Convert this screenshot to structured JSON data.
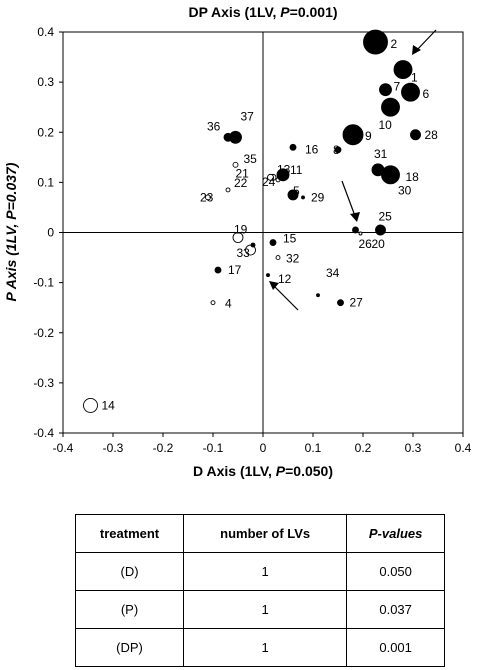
{
  "chart_data": {
    "type": "scatter",
    "title": "DP Axis (1LV, P=0.001)",
    "xlabel": "D Axis (1LV, P=0.050)",
    "ylabel": "P Axis (1LV, P=0.037)",
    "xlim": [
      -0.4,
      0.4
    ],
    "ylim": [
      -0.4,
      0.4
    ],
    "xticks": [
      "-0.4",
      "-0.3",
      "-0.2",
      "-0.1",
      "0",
      "0.1",
      "0.2",
      "0.3",
      "0.4"
    ],
    "yticks": [
      "0.4",
      "0.3",
      "0.2",
      "0.1",
      "0",
      "-0.1",
      "-0.2",
      "-0.3",
      "-0.4"
    ],
    "points": [
      {
        "label": "1",
        "x": 0.28,
        "y": 0.325,
        "r": 9,
        "filled": true
      },
      {
        "label": "2",
        "x": 0.225,
        "y": 0.38,
        "r": 12,
        "filled": true
      },
      {
        "label": "4",
        "x": -0.1,
        "y": -0.14,
        "r": 2,
        "filled": false
      },
      {
        "label": "5",
        "x": 0.06,
        "y": 0.075,
        "r": 5,
        "filled": true
      },
      {
        "label": "6",
        "x": 0.295,
        "y": 0.28,
        "r": 9,
        "filled": true
      },
      {
        "label": "7",
        "x": 0.245,
        "y": 0.285,
        "r": 6,
        "filled": true
      },
      {
        "label": "8",
        "x": 0.15,
        "y": 0.165,
        "r": 3,
        "filled": true
      },
      {
        "label": "9",
        "x": 0.18,
        "y": 0.195,
        "r": 10,
        "filled": true
      },
      {
        "label": "10",
        "x": 0.255,
        "y": 0.25,
        "r": 9,
        "filled": true
      },
      {
        "label": "11",
        "x": 0.03,
        "y": 0.105,
        "r": 2,
        "filled": false
      },
      {
        "label": "12",
        "x": 0.01,
        "y": -0.085,
        "r": 1.5,
        "filled": true
      },
      {
        "label": "13",
        "x": 0.02,
        "y": 0.11,
        "r": 3,
        "filled": false
      },
      {
        "label": "14",
        "x": -0.345,
        "y": -0.345,
        "r": 7,
        "filled": false
      },
      {
        "label": "15",
        "x": 0.02,
        "y": -0.02,
        "r": 3,
        "filled": true
      },
      {
        "label": "16",
        "x": 0.06,
        "y": 0.17,
        "r": 3,
        "filled": true
      },
      {
        "label": "17",
        "x": -0.09,
        "y": -0.075,
        "r": 3,
        "filled": true
      },
      {
        "label": "18",
        "x": 0.255,
        "y": 0.115,
        "r": 9,
        "filled": true
      },
      {
        "label": "19",
        "x": -0.05,
        "y": -0.01,
        "r": 5,
        "filled": false
      },
      {
        "label": "20",
        "x": 0.235,
        "y": 0.005,
        "r": 5,
        "filled": true
      },
      {
        "label": "21",
        "x": 0.015,
        "y": 0.11,
        "r": 3,
        "filled": false
      },
      {
        "label": "22",
        "x": -0.07,
        "y": 0.085,
        "r": 2,
        "filled": false
      },
      {
        "label": "23",
        "x": -0.11,
        "y": 0.07,
        "r": 2.5,
        "filled": false
      },
      {
        "label": "24",
        "x": 0.04,
        "y": 0.115,
        "r": 6,
        "filled": true
      },
      {
        "label": "25",
        "x": 0.195,
        "y": -0.002,
        "r": 1.5,
        "filled": false
      },
      {
        "label": "26",
        "x": 0.185,
        "y": 0.005,
        "r": 3,
        "filled": true
      },
      {
        "label": "27",
        "x": 0.155,
        "y": -0.14,
        "r": 3,
        "filled": true
      },
      {
        "label": "28",
        "x": 0.305,
        "y": 0.195,
        "r": 5,
        "filled": true
      },
      {
        "label": "29",
        "x": 0.08,
        "y": 0.07,
        "r": 1.5,
        "filled": true
      },
      {
        "label": "30",
        "x": 0.26,
        "y": 0.12,
        "r": 2,
        "filled": true
      },
      {
        "label": "31",
        "x": 0.23,
        "y": 0.125,
        "r": 6,
        "filled": true
      },
      {
        "label": "32",
        "x": 0.03,
        "y": -0.05,
        "r": 2,
        "filled": false
      },
      {
        "label": "33",
        "x": -0.025,
        "y": -0.035,
        "r": 5,
        "filled": false
      },
      {
        "label": "34",
        "x": 0.11,
        "y": -0.125,
        "r": 1.5,
        "filled": true
      },
      {
        "label": "35",
        "x": -0.055,
        "y": 0.135,
        "r": 2.5,
        "filled": false
      },
      {
        "label": "36",
        "x": -0.07,
        "y": 0.19,
        "r": 4,
        "filled": true
      },
      {
        "label": "37",
        "x": -0.055,
        "y": 0.19,
        "r": 6,
        "filled": true
      },
      {
        "label": "",
        "x": -0.02,
        "y": -0.025,
        "r": 2,
        "filled": true
      }
    ],
    "grid": false,
    "legend": "none"
  },
  "table": {
    "headers": [
      "treatment",
      "number of LVs",
      "P-values"
    ],
    "rows": [
      [
        "(D)",
        "1",
        "0.050"
      ],
      [
        "(P)",
        "1",
        "0.037"
      ],
      [
        "(DP)",
        "1",
        "0.001"
      ]
    ]
  }
}
